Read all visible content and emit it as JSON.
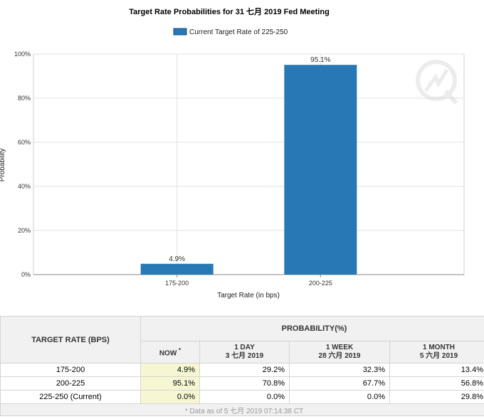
{
  "chart_data": {
    "type": "bar",
    "title": "Target Rate Probabilities for 31 七月 2019  Fed Meeting",
    "legend": {
      "label": "Current Target Rate of 225-250",
      "placement": "top-center"
    },
    "categories": [
      "175-200",
      "200-225"
    ],
    "values": [
      4.9,
      95.1
    ],
    "data_labels": [
      "4.9%",
      "95.1%"
    ],
    "xlabel": "Target Rate (in bps)",
    "ylabel": "Probability",
    "ylim": [
      0,
      100
    ],
    "yticks": [
      "0%",
      "20%",
      "40%",
      "60%",
      "80%",
      "100%"
    ],
    "grid": true,
    "bar_color": "#2878b5"
  },
  "table": {
    "rate_header": "TARGET RATE (BPS)",
    "prob_header": "PROBABILITY(%)",
    "columns": [
      {
        "line1": "NOW",
        "sup": "*",
        "line2": ""
      },
      {
        "line1": "1 DAY",
        "line2": "3 七月 2019"
      },
      {
        "line1": "1 WEEK",
        "line2": "28 六月 2019"
      },
      {
        "line1": "1 MONTH",
        "line2": "5 六月 2019"
      }
    ],
    "rows": [
      {
        "rate": "175-200",
        "vals": [
          "4.9%",
          "29.2%",
          "32.3%",
          "13.4%"
        ]
      },
      {
        "rate": "200-225",
        "vals": [
          "95.1%",
          "70.8%",
          "67.7%",
          "56.8%"
        ]
      },
      {
        "rate": "225-250 (Current)",
        "vals": [
          "0.0%",
          "0.0%",
          "0.0%",
          "29.8%"
        ]
      }
    ],
    "footnote": "* Data as of 5 七月 2019 07:14:38 CT"
  }
}
